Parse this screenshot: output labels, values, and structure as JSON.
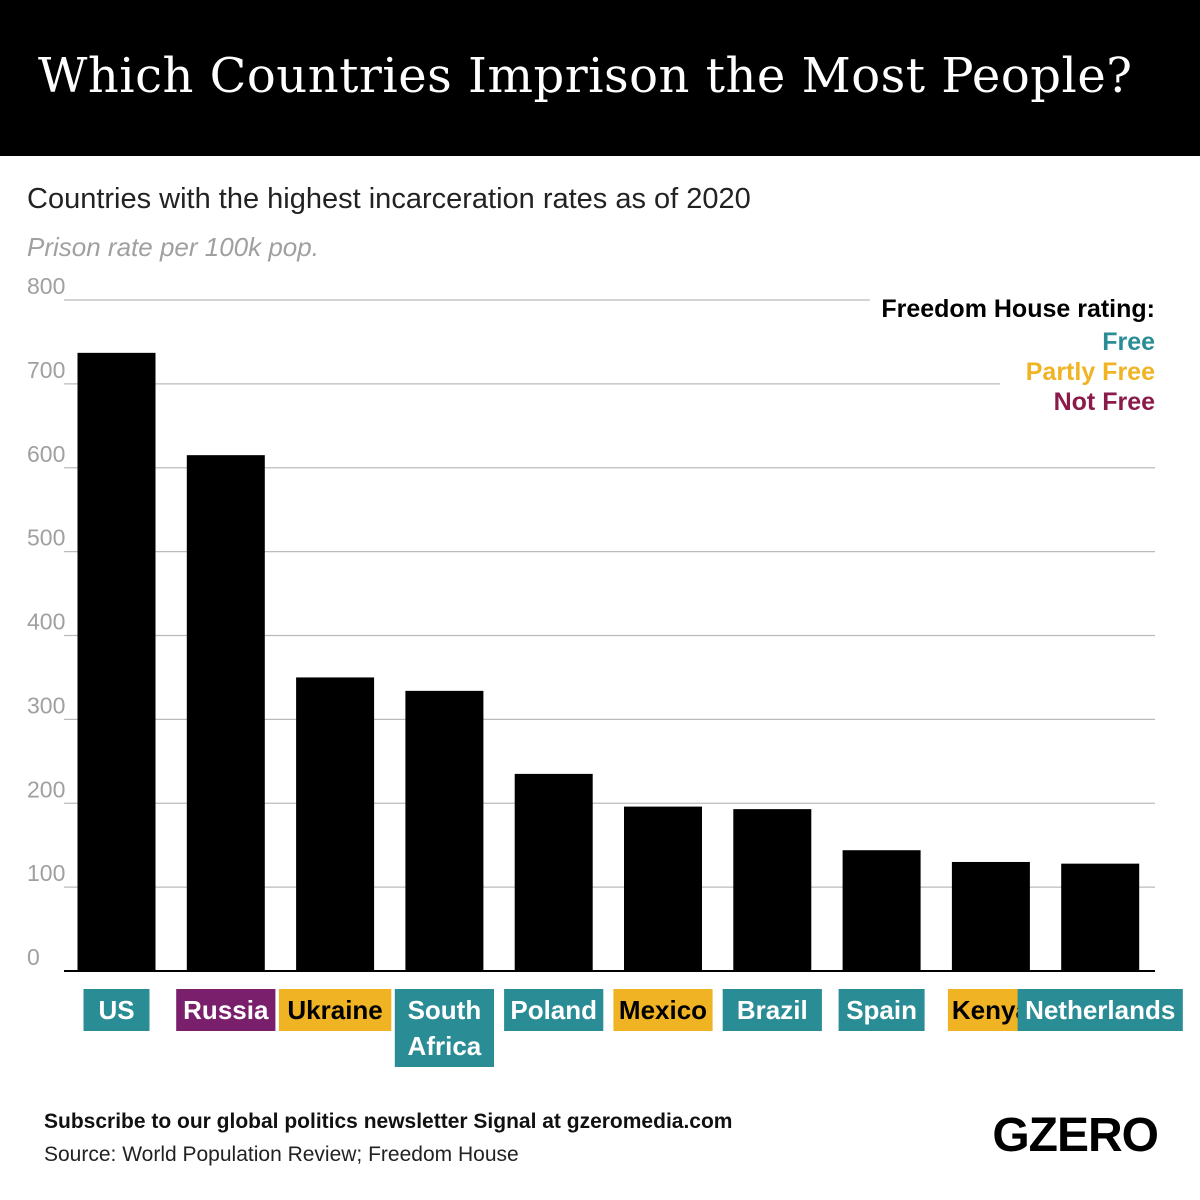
{
  "header": {
    "title": "Which Countries Imprison the Most People?"
  },
  "subtitle": "Countries with the highest incarceration rates as of 2020",
  "unit_label": "Prison rate per 100k pop.",
  "legend": {
    "title": "Freedom House rating:",
    "items": [
      {
        "label": "Free",
        "key": "free"
      },
      {
        "label": "Partly Free",
        "key": "partly"
      },
      {
        "label": "Not Free",
        "key": "notfree"
      }
    ]
  },
  "colors": {
    "free": "#2a8c94",
    "partly": "#f0b323",
    "notfree": "#7a1f6b",
    "notfree_legend": "#8a1a4a",
    "bar": "#000000",
    "grid": "#bbbbbb",
    "tick": "#a0a0a0"
  },
  "chart_data": {
    "type": "bar",
    "title": "Which Countries Imprison the Most People?",
    "subtitle": "Countries with the highest incarceration rates as of 2020",
    "ylabel": "Prison rate per 100k pop.",
    "xlabel": "",
    "ylim": [
      0,
      800
    ],
    "yticks": [
      0,
      100,
      200,
      300,
      400,
      500,
      600,
      700,
      800
    ],
    "grid": true,
    "legend_position": "top-right",
    "categories": [
      "US",
      "Russia",
      "Ukraine",
      "South Africa",
      "Poland",
      "Mexico",
      "Brazil",
      "Spain",
      "Kenya",
      "Netherlands"
    ],
    "label_lines": [
      [
        "US"
      ],
      [
        "Russia"
      ],
      [
        "Ukraine"
      ],
      [
        "South",
        "Africa"
      ],
      [
        "Poland"
      ],
      [
        "Mexico"
      ],
      [
        "Brazil"
      ],
      [
        "Spain"
      ],
      [
        "Kenya"
      ],
      [
        "Netherlands"
      ]
    ],
    "values": [
      737,
      615,
      350,
      334,
      235,
      196,
      193,
      144,
      130,
      128
    ],
    "ratings": [
      "free",
      "notfree",
      "partly",
      "free",
      "free",
      "partly",
      "free",
      "free",
      "partly",
      "free"
    ]
  },
  "footer": {
    "newsletter": "Subscribe to our global politics newsletter Signal at gzeromedia.com",
    "source": "Source: World Population Review; Freedom House",
    "logo": "GZERO"
  }
}
